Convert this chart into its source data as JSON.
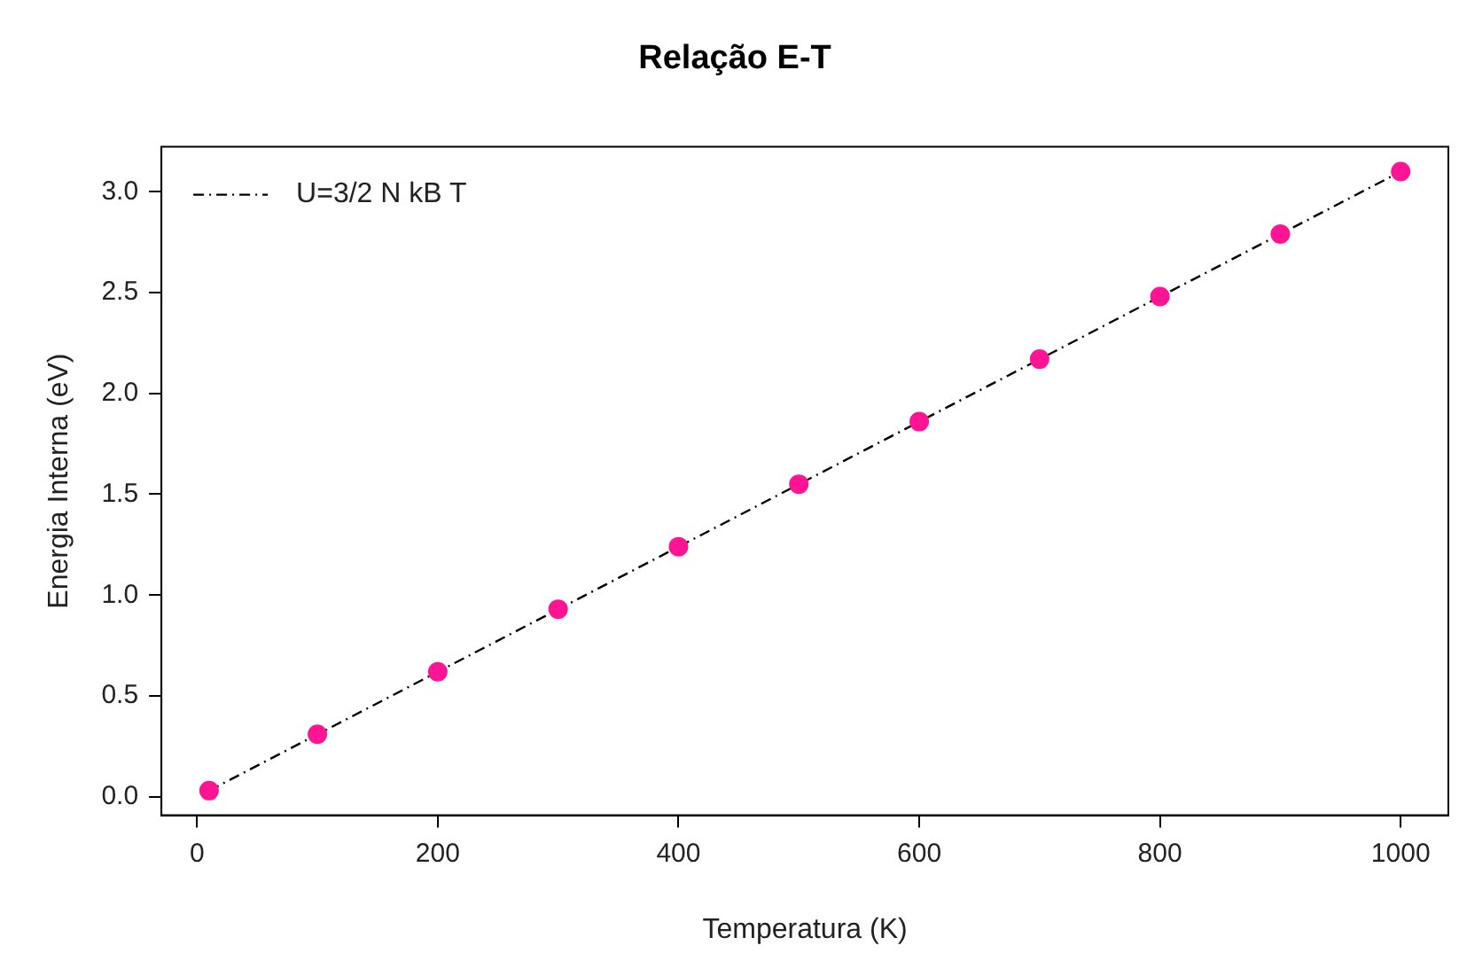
{
  "chart_data": {
    "type": "scatter",
    "title": "Relação E-T",
    "xlabel": "Temperatura (K)",
    "ylabel": "Energia Interna (eV)",
    "x": [
      10,
      100,
      200,
      300,
      400,
      500,
      600,
      700,
      800,
      900,
      1000
    ],
    "series": [
      {
        "type": "line",
        "name": "U=3/2 N kB T",
        "color": "#000000",
        "line_style": "dashdot",
        "marker": "none",
        "x": [
          10,
          1000
        ],
        "values": [
          0.03,
          3.1
        ]
      },
      {
        "type": "scatter",
        "color": "#ff1493",
        "marker": "circle",
        "values": [
          0.03,
          0.31,
          0.62,
          0.93,
          1.24,
          1.55,
          1.86,
          2.17,
          2.48,
          2.79,
          3.1
        ]
      }
    ],
    "xlim": [
      -29.6,
      1039.6
    ],
    "xticks": [
      0,
      200,
      400,
      600,
      800,
      1000
    ],
    "ylim": [
      -0.092,
      3.223
    ],
    "yticks": [
      {
        "value": 0,
        "label": "0.0"
      },
      {
        "value": 0.5,
        "label": "0.5"
      },
      {
        "value": 1,
        "label": "1.0"
      },
      {
        "value": 1.5,
        "label": "1.5"
      },
      {
        "value": 2,
        "label": "2.0"
      },
      {
        "value": 2.5,
        "label": "2.5"
      },
      {
        "value": 3,
        "label": "3.0"
      }
    ],
    "grid": false,
    "legend": "top left"
  }
}
